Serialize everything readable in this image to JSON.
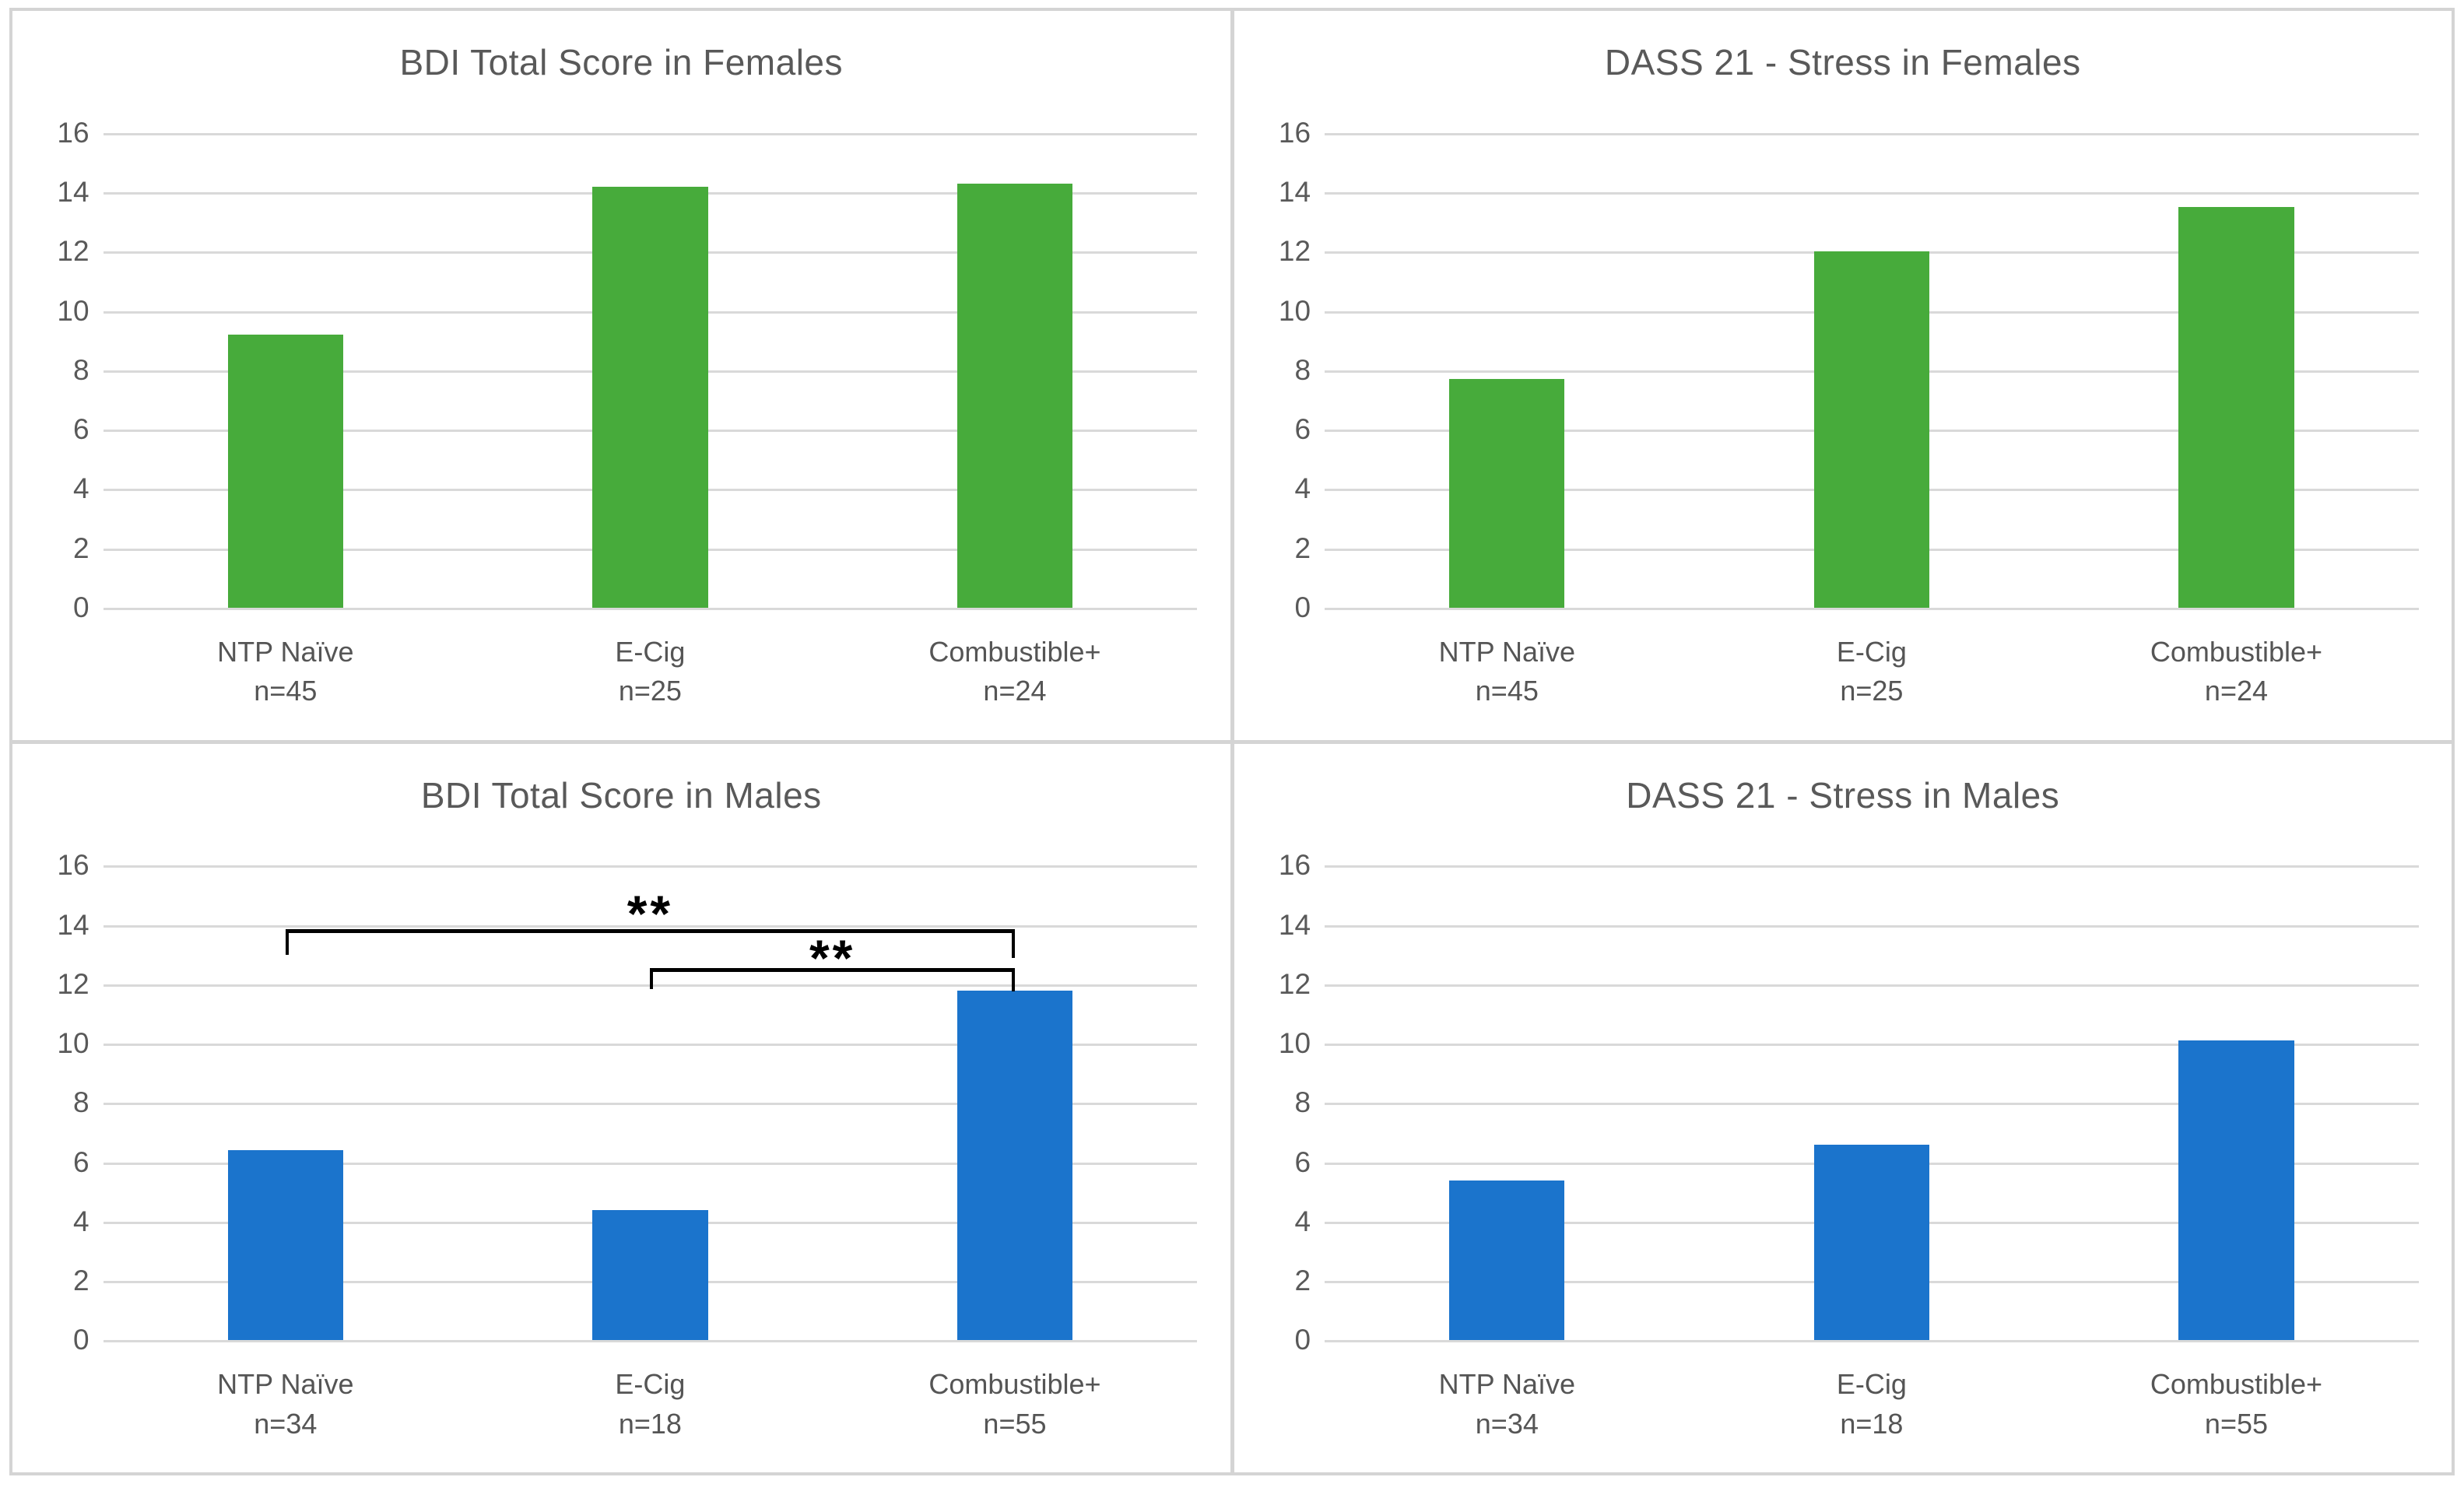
{
  "figure": {
    "colors": {
      "female_bars": "#47AB3B",
      "male_bars": "#1B74CC",
      "gridline": "#D9D9D9",
      "panel_border": "#D4D4D4",
      "title_text": "#595959",
      "tick_text": "#595959",
      "category_text": "#555555",
      "annotation": "#000000"
    },
    "y_axis": {
      "min": 0,
      "max": 16,
      "step": 2,
      "tick_labels": [
        "0",
        "2",
        "4",
        "6",
        "8",
        "10",
        "12",
        "14",
        "16"
      ]
    }
  },
  "chart_data": [
    {
      "type": "bar",
      "title": "BDI Total Score in Females",
      "color": "#47AB3B",
      "categories": [
        "NTP Naïve",
        "E-Cig",
        "Combustible+"
      ],
      "counts": [
        "n=45",
        "n=25",
        "n=24"
      ],
      "values": [
        9.2,
        14.2,
        14.3
      ],
      "ylim": [
        0,
        16
      ],
      "ytick_step": 2,
      "grid": true,
      "legend": "none",
      "annotations": []
    },
    {
      "type": "bar",
      "title": "DASS 21 - Stress in Females",
      "color": "#47AB3B",
      "categories": [
        "NTP Naïve",
        "E-Cig",
        "Combustible+"
      ],
      "counts": [
        "n=45",
        "n=25",
        "n=24"
      ],
      "values": [
        7.7,
        12,
        13.5
      ],
      "ylim": [
        0,
        16
      ],
      "ytick_step": 2,
      "grid": true,
      "legend": "none",
      "annotations": []
    },
    {
      "type": "bar",
      "title": "BDI Total Score in Males",
      "color": "#1B74CC",
      "categories": [
        "NTP Naïve",
        "E-Cig",
        "Combustible+"
      ],
      "counts": [
        "n=34",
        "n=18",
        "n=55"
      ],
      "values": [
        6.4,
        4.4,
        11.8
      ],
      "ylim": [
        0,
        16
      ],
      "ytick_step": 2,
      "grid": true,
      "legend": "none",
      "annotations": [
        {
          "stars": "**",
          "from_category": 0,
          "to_category": 2,
          "bracket_y": 13.85,
          "left_drop": 0.85,
          "right_drop": 0.95,
          "stars_y": 15.25
        },
        {
          "stars": "**",
          "from_category": 1,
          "to_category": 2,
          "bracket_y": 12.55,
          "left_drop": 0.7,
          "right_drop": 0.78,
          "stars_y": 13.75
        }
      ]
    },
    {
      "type": "bar",
      "title": "DASS 21 - Stress in Males",
      "color": "#1B74CC",
      "categories": [
        "NTP Naïve",
        "E-Cig",
        "Combustible+"
      ],
      "counts": [
        "n=34",
        "n=18",
        "n=55"
      ],
      "values": [
        5.4,
        6.6,
        10.1
      ],
      "ylim": [
        0,
        16
      ],
      "ytick_step": 2,
      "grid": true,
      "legend": "none",
      "annotations": []
    }
  ]
}
